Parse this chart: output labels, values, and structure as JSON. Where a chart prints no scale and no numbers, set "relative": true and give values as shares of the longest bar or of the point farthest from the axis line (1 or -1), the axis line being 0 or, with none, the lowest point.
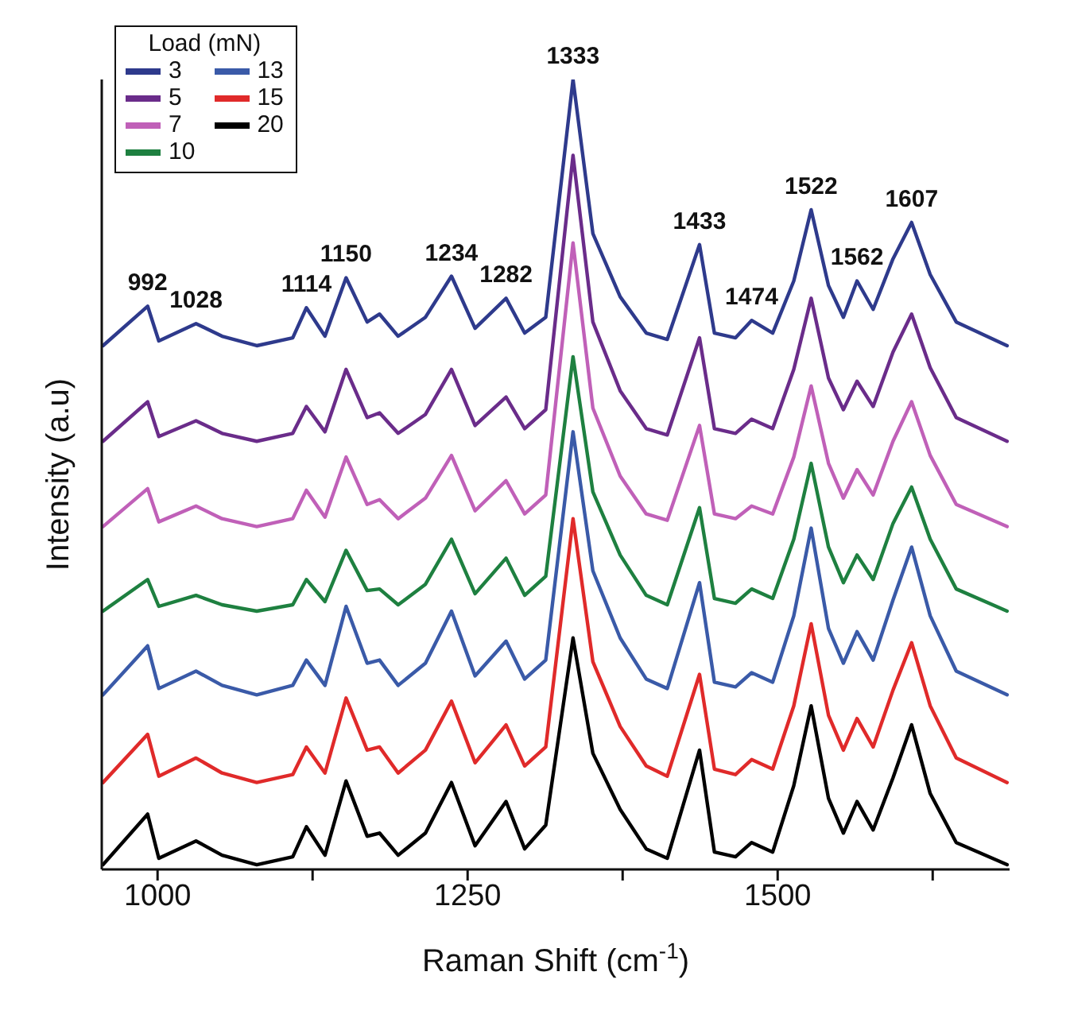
{
  "chart_data": {
    "type": "line",
    "relative": true,
    "xlabel": "Raman Shift (cm$^{-1}$)",
    "ylabel": "Intensity (a.u)",
    "legend_title": "Load (mN)",
    "legend": "top left",
    "xlim": [
      955,
      1687
    ],
    "xticks": [
      1000,
      {
        "value": 1125,
        "label": null
      },
      1250,
      {
        "value": 1375,
        "label": null
      },
      1500,
      {
        "value": 1625,
        "label": null
      }
    ],
    "x": [
      956,
      992,
      1001,
      1031,
      1052,
      1080,
      1109,
      1120,
      1135,
      1152,
      1169,
      1179,
      1194,
      1216,
      1237,
      1256,
      1281,
      1296,
      1313,
      1335,
      1351,
      1373,
      1394,
      1411,
      1437,
      1449,
      1466,
      1479,
      1496,
      1513,
      1527,
      1541,
      1553,
      1564,
      1577,
      1593,
      1608,
      1623,
      1644,
      1685
    ],
    "series": [
      {
        "name": "3",
        "color": "#2e3a8c",
        "values": [
          0.663,
          0.713,
          0.669,
          0.691,
          0.675,
          0.663,
          0.673,
          0.711,
          0.675,
          0.749,
          0.693,
          0.703,
          0.675,
          0.699,
          0.751,
          0.685,
          0.723,
          0.679,
          0.699,
          1,
          0.805,
          0.725,
          0.679,
          0.671,
          0.791,
          0.679,
          0.673,
          0.695,
          0.679,
          0.745,
          0.835,
          0.739,
          0.699,
          0.745,
          0.709,
          0.773,
          0.819,
          0.753,
          0.693,
          0.663
        ]
      },
      {
        "name": "5",
        "color": "#6a2c8a",
        "values": [
          0.542,
          0.592,
          0.548,
          0.568,
          0.552,
          0.542,
          0.552,
          0.586,
          0.554,
          0.633,
          0.572,
          0.578,
          0.552,
          0.576,
          0.633,
          0.562,
          0.598,
          0.558,
          0.582,
          0.904,
          0.693,
          0.606,
          0.558,
          0.55,
          0.673,
          0.558,
          0.552,
          0.57,
          0.558,
          0.633,
          0.723,
          0.622,
          0.582,
          0.618,
          0.586,
          0.655,
          0.703,
          0.635,
          0.572,
          0.542
        ]
      },
      {
        "name": "7",
        "color": "#c060b8",
        "values": [
          0.434,
          0.482,
          0.44,
          0.46,
          0.444,
          0.434,
          0.444,
          0.48,
          0.446,
          0.522,
          0.462,
          0.468,
          0.444,
          0.47,
          0.524,
          0.454,
          0.492,
          0.45,
          0.474,
          0.793,
          0.584,
          0.498,
          0.45,
          0.442,
          0.562,
          0.45,
          0.444,
          0.46,
          0.45,
          0.522,
          0.612,
          0.514,
          0.47,
          0.506,
          0.474,
          0.542,
          0.592,
          0.524,
          0.462,
          0.434
        ]
      },
      {
        "name": "10",
        "color": "#1e8040",
        "values": [
          0.327,
          0.367,
          0.333,
          0.347,
          0.335,
          0.327,
          0.335,
          0.367,
          0.339,
          0.404,
          0.353,
          0.355,
          0.335,
          0.361,
          0.418,
          0.349,
          0.394,
          0.347,
          0.371,
          0.649,
          0.478,
          0.398,
          0.347,
          0.335,
          0.458,
          0.343,
          0.337,
          0.355,
          0.343,
          0.418,
          0.514,
          0.408,
          0.363,
          0.398,
          0.367,
          0.438,
          0.484,
          0.418,
          0.355,
          0.327
        ]
      },
      {
        "name": "13",
        "color": "#3a5aa8",
        "values": [
          0.221,
          0.283,
          0.229,
          0.251,
          0.233,
          0.221,
          0.233,
          0.265,
          0.233,
          0.333,
          0.261,
          0.265,
          0.233,
          0.261,
          0.327,
          0.245,
          0.289,
          0.241,
          0.265,
          0.554,
          0.378,
          0.293,
          0.241,
          0.229,
          0.363,
          0.237,
          0.231,
          0.249,
          0.237,
          0.321,
          0.432,
          0.305,
          0.261,
          0.301,
          0.265,
          0.341,
          0.408,
          0.321,
          0.251,
          0.221
        ]
      },
      {
        "name": "15",
        "color": "#e02a2a",
        "values": [
          0.11,
          0.171,
          0.118,
          0.141,
          0.122,
          0.11,
          0.12,
          0.155,
          0.122,
          0.217,
          0.151,
          0.155,
          0.122,
          0.151,
          0.213,
          0.135,
          0.183,
          0.131,
          0.155,
          0.444,
          0.263,
          0.181,
          0.131,
          0.118,
          0.247,
          0.127,
          0.12,
          0.139,
          0.127,
          0.207,
          0.311,
          0.195,
          0.151,
          0.191,
          0.155,
          0.227,
          0.287,
          0.207,
          0.141,
          0.11
        ]
      },
      {
        "name": "20",
        "color": "#000000",
        "values": [
          0.006,
          0.07,
          0.014,
          0.036,
          0.018,
          0.006,
          0.016,
          0.054,
          0.018,
          0.112,
          0.042,
          0.046,
          0.018,
          0.046,
          0.11,
          0.03,
          0.086,
          0.026,
          0.056,
          0.293,
          0.147,
          0.076,
          0.026,
          0.014,
          0.151,
          0.022,
          0.016,
          0.034,
          0.022,
          0.106,
          0.207,
          0.09,
          0.046,
          0.086,
          0.05,
          0.116,
          0.183,
          0.096,
          0.034,
          0.006
        ]
      }
    ],
    "annotations": [
      {
        "text": "992",
        "x": 992,
        "y": 0.713
      },
      {
        "text": "1028",
        "x": 1031,
        "y": 0.691
      },
      {
        "text": "1114",
        "x": 1120,
        "y": 0.711
      },
      {
        "text": "1150",
        "x": 1152,
        "y": 0.749
      },
      {
        "text": "1234",
        "x": 1237,
        "y": 0.751
      },
      {
        "text": "1282",
        "x": 1281,
        "y": 0.723
      },
      {
        "text": "1333",
        "x": 1335,
        "y": 1
      },
      {
        "text": "1433",
        "x": 1437,
        "y": 0.791
      },
      {
        "text": "1474",
        "x": 1479,
        "y": 0.695
      },
      {
        "text": "1522",
        "x": 1527,
        "y": 0.835
      },
      {
        "text": "1562",
        "x": 1564,
        "y": 0.745
      },
      {
        "text": "1607",
        "x": 1608,
        "y": 0.819
      }
    ]
  }
}
